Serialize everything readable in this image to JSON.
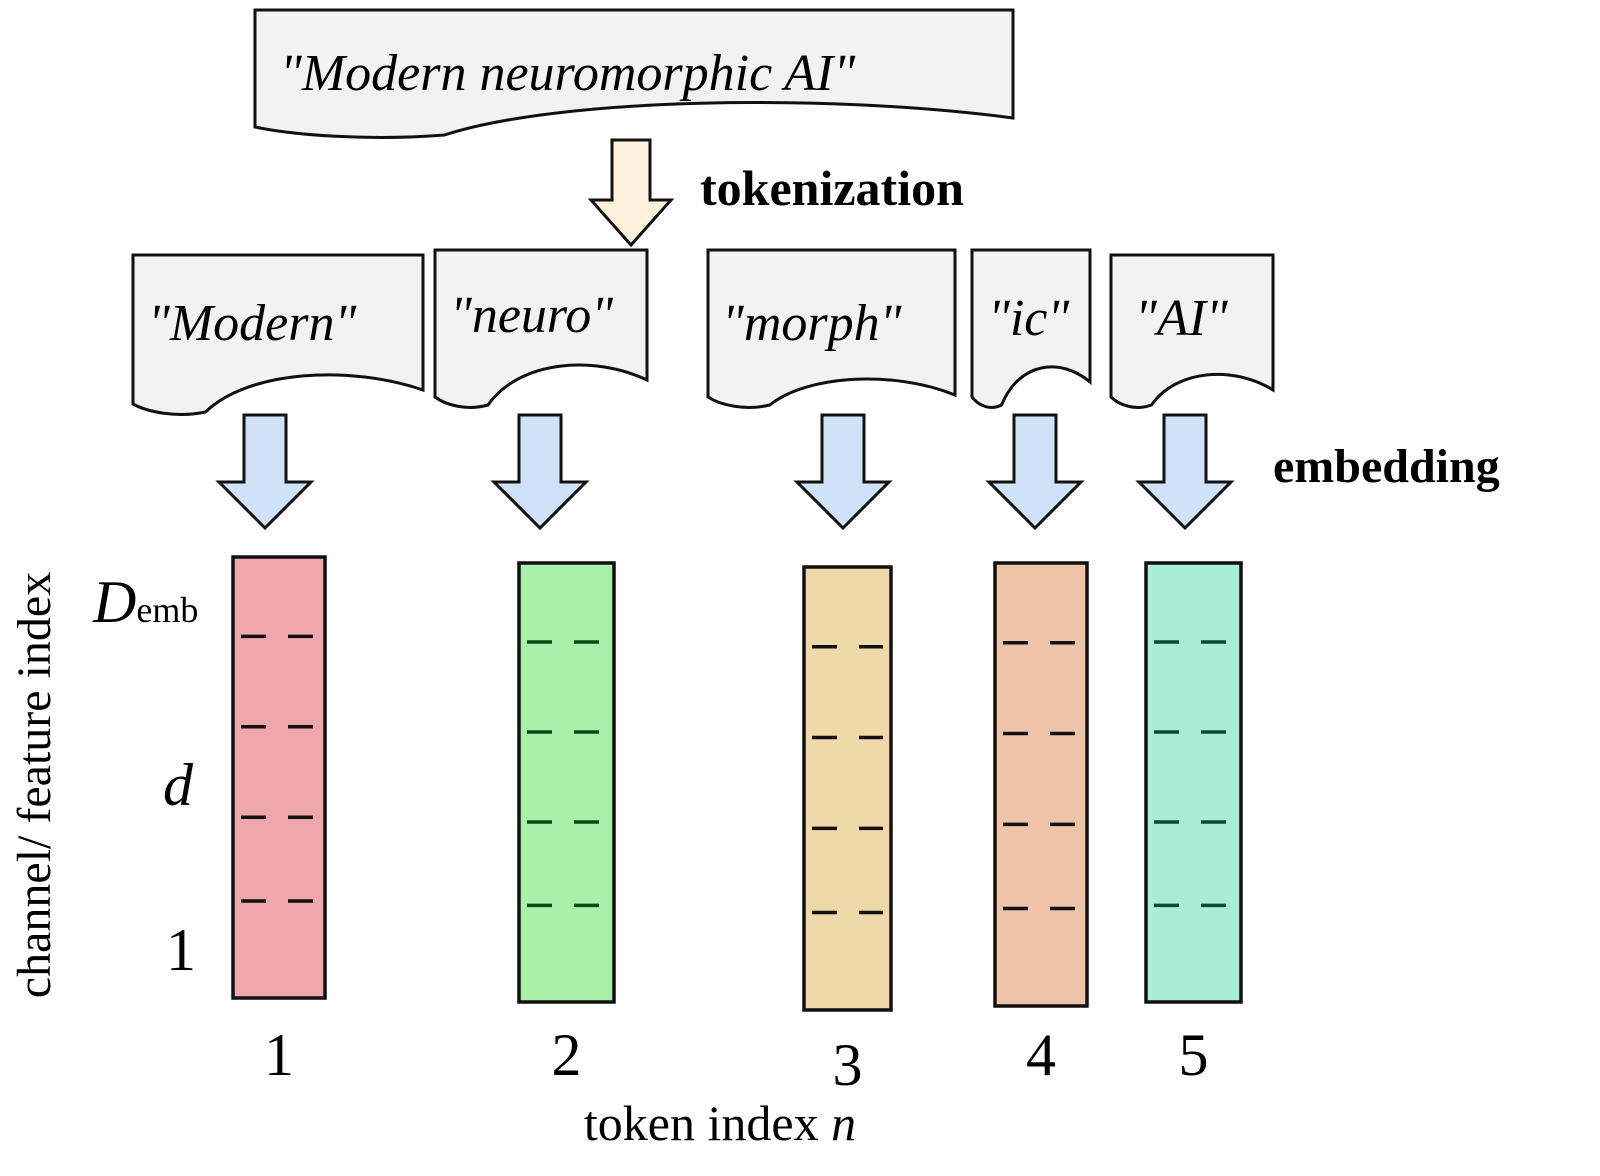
{
  "source_text": "\"Modern neuromorphic AI\"",
  "step_labels": {
    "tokenization": "tokenization",
    "embedding": "embedding"
  },
  "tokens": [
    {
      "text": "\"Modern\"",
      "index": "1",
      "color": "#eea8ab",
      "dash_color": "#111111"
    },
    {
      "text": "\"neuro\"",
      "index": "2",
      "color": "#a8f0ac",
      "dash_color": "#0b4a12"
    },
    {
      "text": "\"morph\"",
      "index": "3",
      "color": "#f0d9a8",
      "dash_color": "#111111"
    },
    {
      "text": "\"ic\"",
      "index": "4",
      "color": "#efc3a8",
      "dash_color": "#111111"
    },
    {
      "text": "\"AI\"",
      "index": "5",
      "color": "#a8eed6",
      "dash_color": "#0b4a32"
    }
  ],
  "y_axis": {
    "label": "channel/ feature index",
    "top": "D",
    "top_sub": "emb",
    "middle": "d",
    "bottom": "1"
  },
  "x_axis": {
    "label": "token index ",
    "label_var": "n"
  },
  "colors": {
    "tokenization_arrow": "#fdf0dc",
    "embedding_arrow": "#d0e2f7",
    "doc_fill": "#f2f2f2"
  }
}
